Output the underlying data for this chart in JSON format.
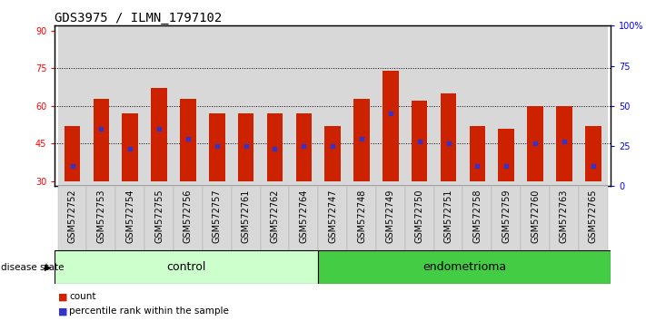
{
  "title": "GDS3975 / ILMN_1797102",
  "samples": [
    "GSM572752",
    "GSM572753",
    "GSM572754",
    "GSM572755",
    "GSM572756",
    "GSM572757",
    "GSM572761",
    "GSM572762",
    "GSM572764",
    "GSM572747",
    "GSM572748",
    "GSM572749",
    "GSM572750",
    "GSM572751",
    "GSM572758",
    "GSM572759",
    "GSM572760",
    "GSM572763",
    "GSM572765"
  ],
  "bar_tops": [
    52,
    63,
    57,
    67,
    63,
    57,
    57,
    57,
    57,
    52,
    63,
    74,
    62,
    65,
    52,
    51,
    60,
    60,
    52
  ],
  "bar_bottoms": [
    30,
    30,
    30,
    30,
    30,
    30,
    30,
    30,
    30,
    30,
    30,
    30,
    30,
    30,
    30,
    30,
    30,
    30,
    30
  ],
  "blue_markers": [
    36,
    51,
    43,
    51,
    47,
    44,
    44,
    43,
    44,
    44,
    47,
    57,
    46,
    45,
    36,
    36,
    45,
    46,
    36
  ],
  "ylim_left": [
    28,
    92
  ],
  "ylim_right": [
    0,
    100
  ],
  "yticks_left": [
    30,
    45,
    60,
    75,
    90
  ],
  "ytick_labels_left": [
    "30",
    "45",
    "60",
    "75",
    "90"
  ],
  "yticks_right": [
    0,
    25,
    50,
    75,
    100
  ],
  "ytick_labels_right": [
    "0",
    "25",
    "50",
    "75",
    "100%"
  ],
  "control_count": 9,
  "endometrioma_count": 10,
  "control_label": "control",
  "endometrioma_label": "endometrioma",
  "disease_state_label": "disease state",
  "legend_count_label": "count",
  "legend_percentile_label": "percentile rank within the sample",
  "bar_color": "#cc2200",
  "blue_color": "#3333cc",
  "plot_bg": "#ffffff",
  "control_bg": "#ccffcc",
  "endometrioma_bg": "#44cc44",
  "sample_bg": "#d8d8d8",
  "title_fontsize": 10,
  "tick_fontsize": 7
}
